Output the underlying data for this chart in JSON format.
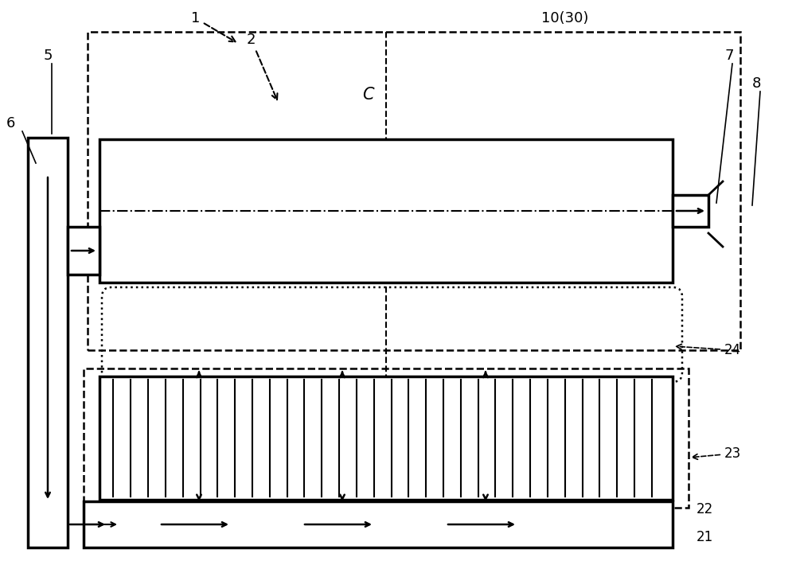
{
  "bg_color": "#ffffff",
  "fig_width": 10.0,
  "fig_height": 7.1,
  "dpi": 100,
  "labels": {
    "top_right": "10(30)",
    "label1": "1",
    "label2": "2",
    "label5": "5",
    "label6": "6",
    "label7": "7",
    "label8": "8",
    "label21": "21",
    "label22": "22",
    "label23": "23",
    "label24": "24",
    "labelC": "C"
  }
}
